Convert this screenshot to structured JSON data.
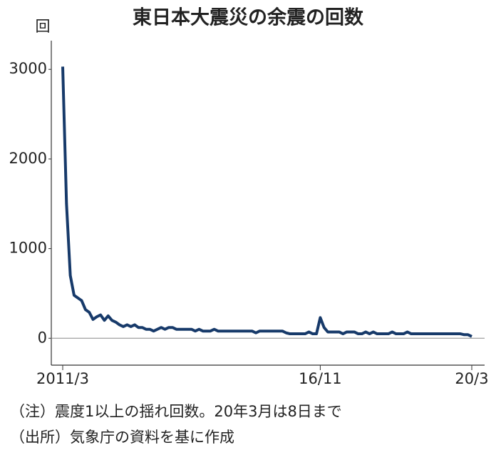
{
  "chart_data": {
    "type": "line",
    "title": "東日本大震災の余震の回数",
    "y_unit": "回",
    "categories": [
      "2011/3",
      null,
      null,
      null,
      null,
      null,
      null,
      null,
      null,
      null,
      null,
      null,
      null,
      null,
      null,
      null,
      null,
      null,
      null,
      null,
      null,
      null,
      null,
      null,
      null,
      null,
      null,
      null,
      null,
      null,
      null,
      null,
      null,
      null,
      null,
      null,
      null,
      null,
      null,
      null,
      null,
      null,
      null,
      null,
      null,
      null,
      null,
      null,
      null,
      null,
      null,
      null,
      null,
      null,
      null,
      null,
      null,
      null,
      null,
      null,
      null,
      null,
      null,
      null,
      null,
      null,
      null,
      null,
      "16/11",
      null,
      null,
      null,
      null,
      null,
      null,
      null,
      null,
      null,
      null,
      null,
      null,
      null,
      null,
      null,
      null,
      null,
      null,
      null,
      null,
      null,
      null,
      null,
      null,
      null,
      null,
      null,
      null,
      null,
      null,
      null,
      null,
      null,
      null,
      null,
      null,
      null,
      null,
      null,
      "20/3"
    ],
    "values": [
      3030,
      1500,
      700,
      480,
      450,
      420,
      320,
      290,
      210,
      240,
      260,
      200,
      250,
      200,
      180,
      150,
      130,
      150,
      130,
      150,
      120,
      120,
      100,
      100,
      80,
      100,
      120,
      100,
      120,
      120,
      100,
      100,
      100,
      100,
      100,
      80,
      100,
      80,
      80,
      80,
      100,
      80,
      80,
      80,
      80,
      80,
      80,
      80,
      80,
      80,
      80,
      60,
      80,
      80,
      80,
      80,
      80,
      80,
      80,
      60,
      50,
      50,
      50,
      50,
      50,
      70,
      50,
      50,
      230,
      120,
      70,
      70,
      70,
      70,
      50,
      70,
      70,
      70,
      50,
      50,
      70,
      50,
      70,
      50,
      50,
      50,
      50,
      70,
      50,
      50,
      50,
      70,
      50,
      50,
      50,
      50,
      50,
      50,
      50,
      50,
      50,
      50,
      50,
      50,
      50,
      50,
      40,
      40,
      20
    ],
    "color": "#173a6a",
    "ylim": [
      -300,
      3320
    ],
    "yticks": [
      0,
      1000,
      2000,
      3000
    ],
    "notes": [
      "（注）震度1以上の揺れ回数。20年3月は8日まで",
      "（出所）気象庁の資料を基に作成"
    ]
  }
}
